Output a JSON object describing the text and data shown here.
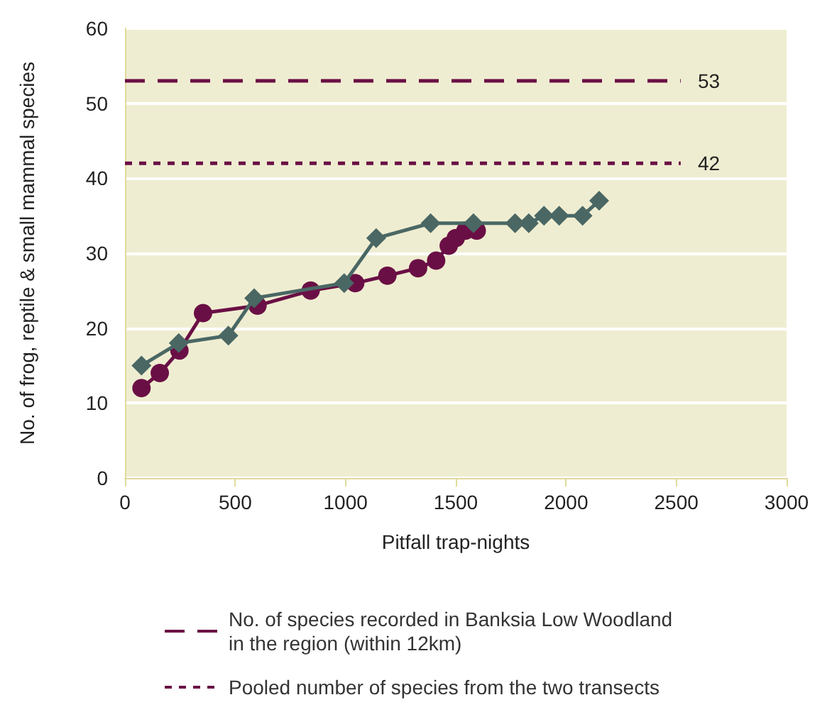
{
  "chart_data": {
    "type": "line",
    "xlabel": "Pitfall trap-nights",
    "ylabel": "No. of frog, reptile & small mammal species",
    "xlim": [
      0,
      3000
    ],
    "xticks": [
      0,
      500,
      1000,
      1500,
      2000,
      2500,
      3000
    ],
    "ylim": [
      0,
      60
    ],
    "yticks": [
      0,
      10,
      20,
      30,
      40,
      50,
      60
    ],
    "grid": "y",
    "legend": "bottom",
    "series": [
      {
        "color": "#4a6764",
        "marker": "diamond",
        "x": [
          75,
          244,
          469,
          586,
          994,
          1139,
          1386,
          1580,
          1769,
          1831,
          1900,
          1969,
          2075,
          2150
        ],
        "values": [
          15,
          18,
          19,
          24,
          26,
          32,
          34,
          34,
          34,
          34,
          35,
          35,
          35,
          37
        ]
      },
      {
        "color": "#6a0f45",
        "marker": "circle",
        "x": [
          75,
          158,
          247,
          354,
          601,
          842,
          1044,
          1190,
          1329,
          1411,
          1468,
          1500,
          1544,
          1595
        ],
        "values": [
          12,
          14,
          17,
          22,
          23,
          25,
          26,
          27,
          28,
          29,
          31,
          32,
          33,
          33
        ]
      },
      {
        "name": "No. of species recorded in Banksia Low Woodland\nin the region (within 12km)",
        "color": "#6a0f45",
        "marker": "none",
        "line_style": "dashed",
        "x": [
          0,
          2520
        ],
        "values": [
          53,
          53
        ],
        "value_labels": [
          null,
          "53"
        ]
      },
      {
        "name": "Pooled number of species from the two transects",
        "color": "#6a0f45",
        "marker": "none",
        "line_style": "dotted",
        "x": [
          0,
          2520
        ],
        "values": [
          42,
          42
        ],
        "value_labels": [
          null,
          "42"
        ]
      }
    ]
  }
}
